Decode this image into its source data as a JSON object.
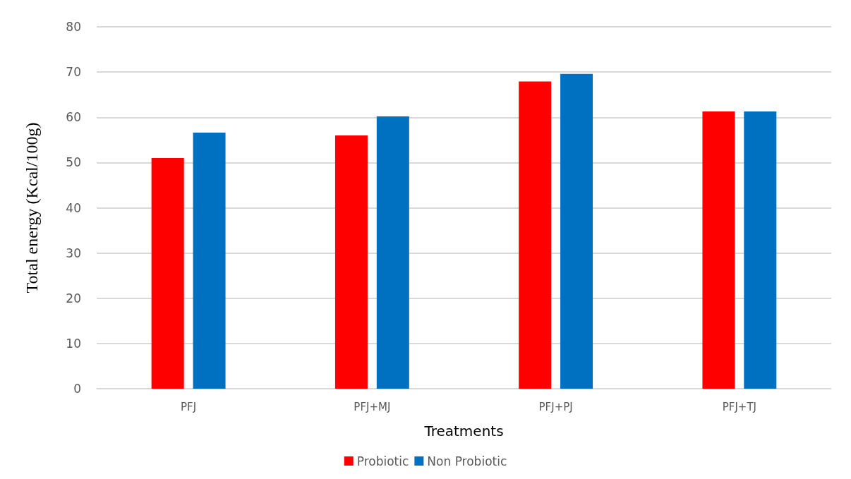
{
  "chart_data": {
    "type": "bar",
    "xlabel": "Treatments",
    "ylabel": "Total energy (Kcal/100g)",
    "categories": [
      "PFJ",
      "PFJ+MJ",
      "PFJ+PJ",
      "PFJ+TJ"
    ],
    "series": [
      {
        "name": "Probiotic",
        "color": "#ff0000",
        "values": [
          51.0,
          56.0,
          67.9,
          61.3
        ]
      },
      {
        "name": "Non Probiotic",
        "color": "#0070c0",
        "values": [
          56.6,
          60.2,
          69.6,
          61.3
        ]
      }
    ],
    "ylim": [
      0,
      80
    ],
    "yticks": [
      0,
      10,
      20,
      30,
      40,
      50,
      60,
      70,
      80
    ],
    "grid": "y",
    "legend": "bottom"
  }
}
